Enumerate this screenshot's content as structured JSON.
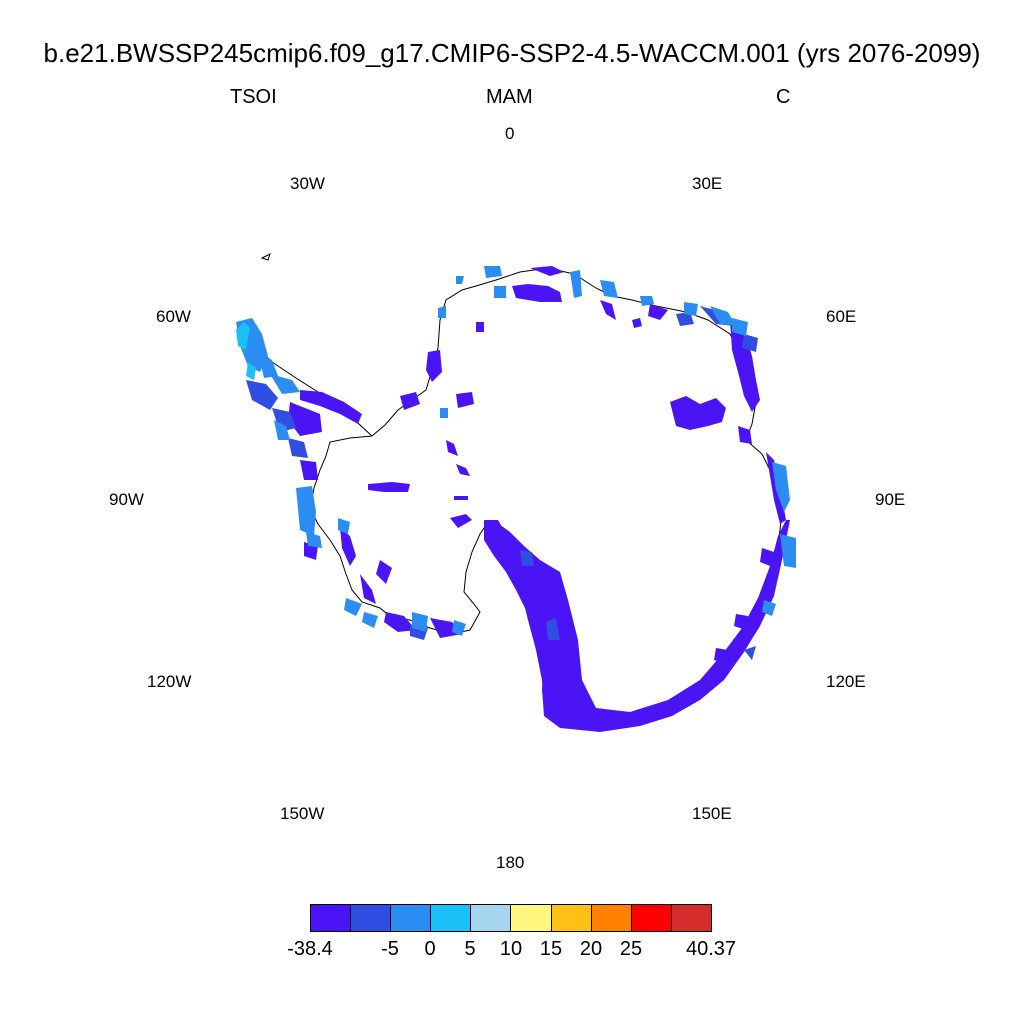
{
  "title": "b.e21.BWSSP245cmip6.f09_g17.CMIP6-SSP2-4.5-WACCM.001 (yrs 2076-2099)",
  "variable": "TSOI",
  "season": "MAM",
  "units": "C",
  "longitude_labels": {
    "lon_0": "0",
    "lon_30e": "30E",
    "lon_60e": "60E",
    "lon_90e": "90E",
    "lon_120e": "120E",
    "lon_150e": "150E",
    "lon_180": "180",
    "lon_150w": "150W",
    "lon_120w": "120W",
    "lon_90w": "90W",
    "lon_60w": "60W",
    "lon_30w": "30W"
  },
  "projection": "south-polar-stereographic",
  "colorbar": {
    "colors": [
      "#4a14f5",
      "#304ee2",
      "#2b8df2",
      "#19c1f7",
      "#a4d6f0",
      "#fff67e",
      "#ffc016",
      "#ff7f00",
      "#fe0000",
      "#d62b2b"
    ],
    "labels": [
      "-38.4",
      "-5",
      "0",
      "5",
      "10",
      "15",
      "20",
      "25",
      "40.37"
    ]
  },
  "field_colors": {
    "deep_negative": "#4a14f5",
    "moderate_negative": "#304ee2",
    "slight_negative": "#2b8df2",
    "near_zero": "#19c1f7"
  }
}
